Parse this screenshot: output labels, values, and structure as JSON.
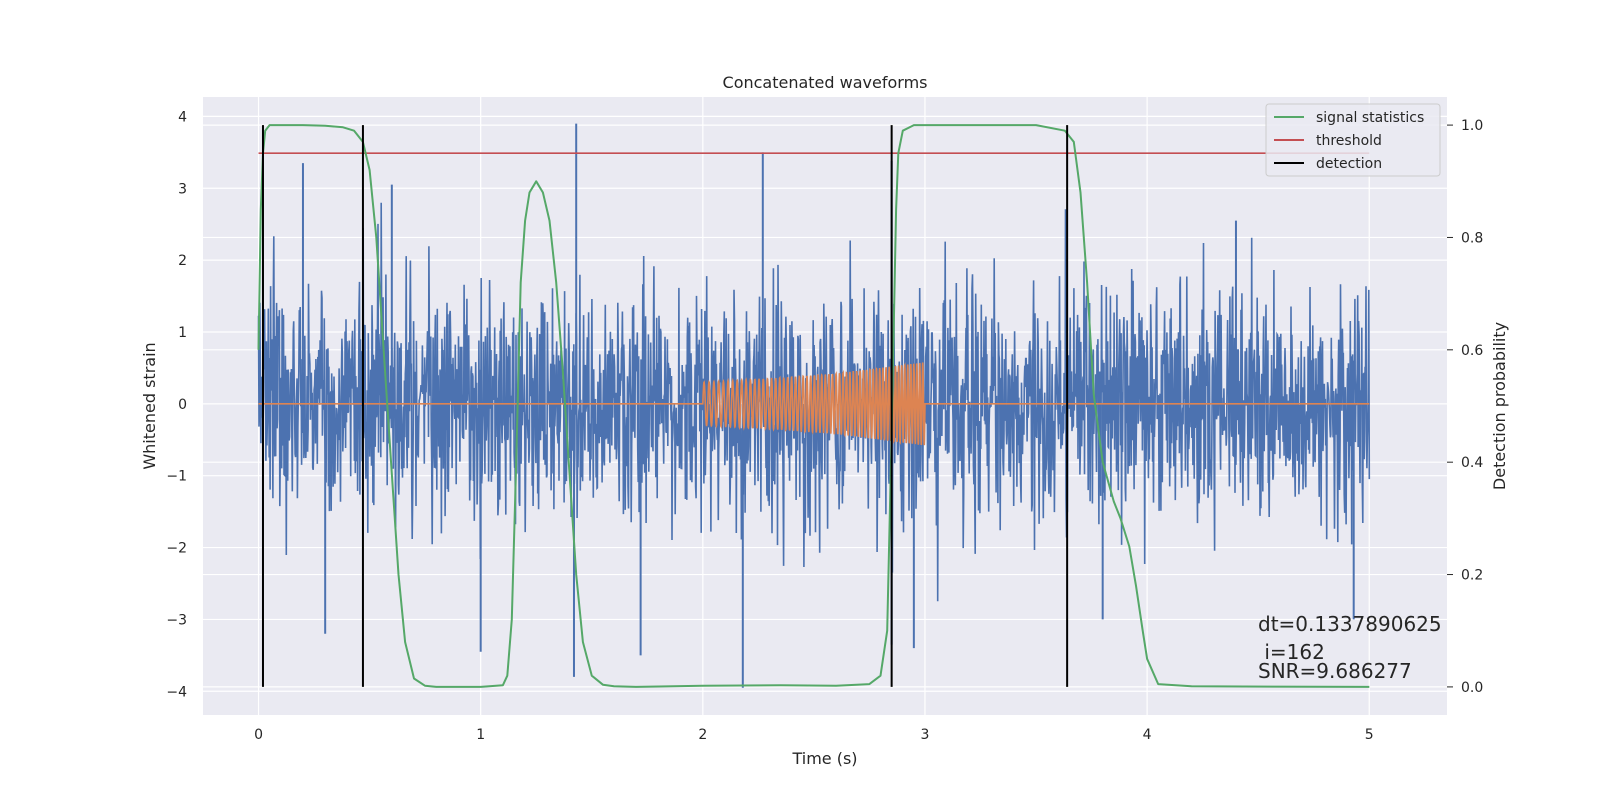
{
  "chart_data": {
    "type": "line",
    "title": "Concatenated waveforms",
    "xlabel": "Time (s)",
    "ylabel": "Whitened strain",
    "y2label": "Detection probability",
    "xlim": [
      -0.25,
      5.35
    ],
    "ylim": [
      -4.33,
      4.27
    ],
    "y2lim": [
      -0.05,
      1.05
    ],
    "xticks": [
      0,
      1,
      2,
      3,
      4,
      5
    ],
    "yticks": [
      -4,
      -3,
      -2,
      -1,
      0,
      1,
      2,
      3,
      4
    ],
    "y2ticks": [
      0.0,
      0.2,
      0.4,
      0.6,
      0.8,
      1.0
    ],
    "grid": true,
    "legend_position": "top-right",
    "colors": {
      "background": "#eaeaf2",
      "grid": "#ffffff",
      "noise": "#4c72b0",
      "injected": "#dd8452",
      "statistic": "#55a868",
      "threshold": "#c44e52",
      "detection": "#000000"
    },
    "series": [
      {
        "name": "whitened-strain",
        "axis": "left",
        "note": "dense noise time series, roughly Gaussian, standard deviation about 1 over 0 to 5 s",
        "x_range": [
          0,
          5
        ],
        "sigma": 0.8,
        "highlighted_spikes": [
          {
            "x": 0.2,
            "y": 3.35
          },
          {
            "x": 0.3,
            "y": -3.2
          },
          {
            "x": 1.0,
            "y": -3.45
          },
          {
            "x": 1.43,
            "y": 3.9
          },
          {
            "x": 1.42,
            "y": -3.8
          },
          {
            "x": 2.18,
            "y": -3.95
          },
          {
            "x": 2.27,
            "y": 3.5
          },
          {
            "x": 2.85,
            "y": -3.35
          },
          {
            "x": 2.85,
            "y": 3.38
          },
          {
            "x": 2.95,
            "y": -3.4
          },
          {
            "x": 4.93,
            "y": -3.0
          },
          {
            "x": 1.72,
            "y": -3.5
          },
          {
            "x": 4.4,
            "y": 2.55
          },
          {
            "x": 3.8,
            "y": -3.0
          },
          {
            "x": 0.6,
            "y": 3.05
          }
        ]
      },
      {
        "name": "injected-waveform",
        "axis": "left",
        "x": [
          0,
          2.0,
          2.0,
          2.3,
          2.6,
          2.85,
          3.0,
          3.0,
          5.0
        ],
        "envelope": [
          0,
          0,
          0.3,
          0.35,
          0.42,
          0.52,
          0.58,
          0,
          0
        ],
        "cycles": 60
      },
      {
        "name": "signal statistics",
        "axis": "right",
        "x": [
          0.0,
          0.01,
          0.02,
          0.03,
          0.05,
          0.08,
          0.12,
          0.2,
          0.3,
          0.38,
          0.43,
          0.47,
          0.5,
          0.53,
          0.56,
          0.6,
          0.63,
          0.66,
          0.7,
          0.75,
          0.8,
          0.9,
          1.0,
          1.1,
          1.12,
          1.14,
          1.16,
          1.18,
          1.2,
          1.22,
          1.25,
          1.28,
          1.31,
          1.34,
          1.37,
          1.4,
          1.43,
          1.46,
          1.5,
          1.55,
          1.6,
          1.7,
          2.0,
          2.35,
          2.6,
          2.75,
          2.8,
          2.83,
          2.85,
          2.87,
          2.88,
          2.9,
          2.95,
          3.0,
          3.2,
          3.5,
          3.63,
          3.67,
          3.7,
          3.73,
          3.76,
          3.8,
          3.85,
          3.88,
          3.92,
          3.95,
          3.98,
          4.0,
          4.05,
          4.2,
          5.0
        ],
        "y": [
          0.6,
          0.85,
          0.95,
          0.99,
          1.0,
          1.0,
          1.0,
          1.0,
          0.999,
          0.996,
          0.99,
          0.97,
          0.92,
          0.8,
          0.62,
          0.38,
          0.2,
          0.08,
          0.015,
          0.002,
          0.0,
          0.0,
          0.0,
          0.003,
          0.02,
          0.12,
          0.4,
          0.72,
          0.83,
          0.88,
          0.9,
          0.88,
          0.83,
          0.72,
          0.56,
          0.38,
          0.2,
          0.08,
          0.02,
          0.004,
          0.001,
          0.0,
          0.002,
          0.003,
          0.002,
          0.005,
          0.02,
          0.1,
          0.45,
          0.85,
          0.95,
          0.99,
          1.0,
          1.0,
          1.0,
          1.0,
          0.99,
          0.97,
          0.88,
          0.72,
          0.52,
          0.4,
          0.33,
          0.3,
          0.25,
          0.18,
          0.1,
          0.05,
          0.005,
          0.001,
          0.0
        ]
      },
      {
        "name": "threshold",
        "axis": "right",
        "x": [
          0.0,
          5.0
        ],
        "y": [
          0.95,
          0.95
        ]
      },
      {
        "name": "detection",
        "axis": "right",
        "vlines": [
          0.02,
          0.47,
          2.85,
          3.64
        ],
        "y": [
          0.0,
          1.0
        ]
      }
    ],
    "legend": [
      "signal statistics",
      "threshold",
      "detection"
    ],
    "annotations": [
      "dt=0.1337890625",
      " i=162",
      "SNR=9.686277"
    ]
  }
}
